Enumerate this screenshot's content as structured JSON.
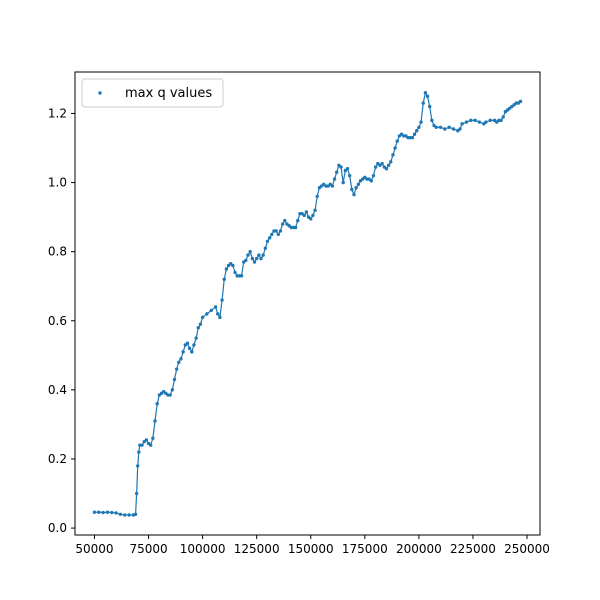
{
  "chart_data": {
    "type": "scatter",
    "title": "",
    "xlabel": "",
    "ylabel": "",
    "xlim": [
      41000,
      256000
    ],
    "ylim": [
      -0.02,
      1.32
    ],
    "xticks": [
      50000,
      75000,
      100000,
      125000,
      150000,
      175000,
      200000,
      225000,
      250000
    ],
    "xtick_labels": [
      "50000",
      "75000",
      "100000",
      "125000",
      "150000",
      "175000",
      "200000",
      "225000",
      "250000"
    ],
    "yticks": [
      0.0,
      0.2,
      0.4,
      0.6,
      0.8,
      1.0,
      1.2
    ],
    "ytick_labels": [
      "0.0",
      "0.2",
      "0.4",
      "0.6",
      "0.8",
      "1.0",
      "1.2"
    ],
    "grid": false,
    "legend_position": "upper-left",
    "series": [
      {
        "name": "max q values",
        "color": "#1f77b4",
        "connected": true,
        "points": [
          [
            50000,
            0.046
          ],
          [
            52000,
            0.046
          ],
          [
            54000,
            0.045
          ],
          [
            56000,
            0.046
          ],
          [
            58000,
            0.045
          ],
          [
            60000,
            0.044
          ],
          [
            62000,
            0.04
          ],
          [
            64000,
            0.038
          ],
          [
            66000,
            0.038
          ],
          [
            68000,
            0.038
          ],
          [
            69000,
            0.04
          ],
          [
            69500,
            0.1
          ],
          [
            70000,
            0.18
          ],
          [
            70500,
            0.22
          ],
          [
            71000,
            0.24
          ],
          [
            72000,
            0.24
          ],
          [
            73000,
            0.25
          ],
          [
            74000,
            0.255
          ],
          [
            75000,
            0.245
          ],
          [
            76000,
            0.24
          ],
          [
            77000,
            0.26
          ],
          [
            78000,
            0.31
          ],
          [
            79000,
            0.36
          ],
          [
            80000,
            0.385
          ],
          [
            81000,
            0.39
          ],
          [
            82000,
            0.395
          ],
          [
            83000,
            0.39
          ],
          [
            84000,
            0.385
          ],
          [
            85000,
            0.385
          ],
          [
            86000,
            0.4
          ],
          [
            87000,
            0.43
          ],
          [
            88000,
            0.46
          ],
          [
            89000,
            0.48
          ],
          [
            90000,
            0.49
          ],
          [
            91000,
            0.51
          ],
          [
            92000,
            0.53
          ],
          [
            93000,
            0.535
          ],
          [
            94000,
            0.52
          ],
          [
            95000,
            0.51
          ],
          [
            96000,
            0.53
          ],
          [
            97000,
            0.55
          ],
          [
            98000,
            0.58
          ],
          [
            99000,
            0.59
          ],
          [
            100000,
            0.61
          ],
          [
            102000,
            0.62
          ],
          [
            104000,
            0.63
          ],
          [
            106000,
            0.64
          ],
          [
            107000,
            0.62
          ],
          [
            108000,
            0.61
          ],
          [
            109000,
            0.66
          ],
          [
            110000,
            0.72
          ],
          [
            111000,
            0.75
          ],
          [
            112000,
            0.76
          ],
          [
            113000,
            0.765
          ],
          [
            114000,
            0.76
          ],
          [
            115000,
            0.74
          ],
          [
            116000,
            0.73
          ],
          [
            117000,
            0.73
          ],
          [
            118000,
            0.73
          ],
          [
            119000,
            0.77
          ],
          [
            120000,
            0.775
          ],
          [
            121000,
            0.79
          ],
          [
            122000,
            0.8
          ],
          [
            123000,
            0.78
          ],
          [
            124000,
            0.77
          ],
          [
            125000,
            0.78
          ],
          [
            126000,
            0.79
          ],
          [
            127000,
            0.78
          ],
          [
            128000,
            0.79
          ],
          [
            129000,
            0.81
          ],
          [
            130000,
            0.83
          ],
          [
            131000,
            0.84
          ],
          [
            132000,
            0.85
          ],
          [
            133000,
            0.86
          ],
          [
            134000,
            0.86
          ],
          [
            135000,
            0.85
          ],
          [
            136000,
            0.86
          ],
          [
            137000,
            0.88
          ],
          [
            138000,
            0.89
          ],
          [
            139000,
            0.88
          ],
          [
            140000,
            0.875
          ],
          [
            141000,
            0.87
          ],
          [
            142000,
            0.87
          ],
          [
            143000,
            0.87
          ],
          [
            144000,
            0.89
          ],
          [
            145000,
            0.91
          ],
          [
            146000,
            0.91
          ],
          [
            147000,
            0.905
          ],
          [
            148000,
            0.915
          ],
          [
            149000,
            0.9
          ],
          [
            150000,
            0.895
          ],
          [
            151000,
            0.905
          ],
          [
            152000,
            0.92
          ],
          [
            153000,
            0.96
          ],
          [
            154000,
            0.985
          ],
          [
            155000,
            0.99
          ],
          [
            156000,
            0.995
          ],
          [
            157000,
            0.99
          ],
          [
            158000,
            0.99
          ],
          [
            159000,
            0.995
          ],
          [
            160000,
            0.99
          ],
          [
            161000,
            1.01
          ],
          [
            162000,
            1.03
          ],
          [
            163000,
            1.05
          ],
          [
            164000,
            1.045
          ],
          [
            165000,
            1.0
          ],
          [
            166000,
            1.035
          ],
          [
            167000,
            1.04
          ],
          [
            168000,
            1.02
          ],
          [
            169000,
            0.98
          ],
          [
            170000,
            0.965
          ],
          [
            171000,
            0.985
          ],
          [
            172000,
            0.995
          ],
          [
            173000,
            1.005
          ],
          [
            174000,
            1.01
          ],
          [
            175000,
            1.015
          ],
          [
            176000,
            1.01
          ],
          [
            177000,
            1.01
          ],
          [
            178000,
            1.005
          ],
          [
            179000,
            1.02
          ],
          [
            180000,
            1.045
          ],
          [
            181000,
            1.055
          ],
          [
            182000,
            1.05
          ],
          [
            183000,
            1.055
          ],
          [
            184000,
            1.045
          ],
          [
            185000,
            1.04
          ],
          [
            186000,
            1.05
          ],
          [
            187000,
            1.06
          ],
          [
            188000,
            1.08
          ],
          [
            189000,
            1.1
          ],
          [
            190000,
            1.12
          ],
          [
            191000,
            1.135
          ],
          [
            192000,
            1.14
          ],
          [
            193000,
            1.135
          ],
          [
            194000,
            1.135
          ],
          [
            195000,
            1.13
          ],
          [
            196000,
            1.13
          ],
          [
            197000,
            1.13
          ],
          [
            198000,
            1.14
          ],
          [
            199000,
            1.15
          ],
          [
            200000,
            1.16
          ],
          [
            201000,
            1.175
          ],
          [
            202000,
            1.23
          ],
          [
            203000,
            1.26
          ],
          [
            204000,
            1.25
          ],
          [
            205000,
            1.22
          ],
          [
            206000,
            1.18
          ],
          [
            207000,
            1.165
          ],
          [
            208000,
            1.16
          ],
          [
            210000,
            1.16
          ],
          [
            212000,
            1.155
          ],
          [
            214000,
            1.16
          ],
          [
            216000,
            1.155
          ],
          [
            218000,
            1.15
          ],
          [
            219000,
            1.155
          ],
          [
            220000,
            1.17
          ],
          [
            222000,
            1.175
          ],
          [
            224000,
            1.18
          ],
          [
            226000,
            1.18
          ],
          [
            228000,
            1.175
          ],
          [
            230000,
            1.17
          ],
          [
            231000,
            1.175
          ],
          [
            233000,
            1.18
          ],
          [
            235000,
            1.18
          ],
          [
            236000,
            1.175
          ],
          [
            237000,
            1.18
          ],
          [
            238000,
            1.18
          ],
          [
            239000,
            1.19
          ],
          [
            240000,
            1.205
          ],
          [
            241000,
            1.21
          ],
          [
            242000,
            1.215
          ],
          [
            243000,
            1.22
          ],
          [
            244000,
            1.225
          ],
          [
            245000,
            1.23
          ],
          [
            246000,
            1.23
          ],
          [
            247000,
            1.235
          ]
        ]
      }
    ]
  }
}
